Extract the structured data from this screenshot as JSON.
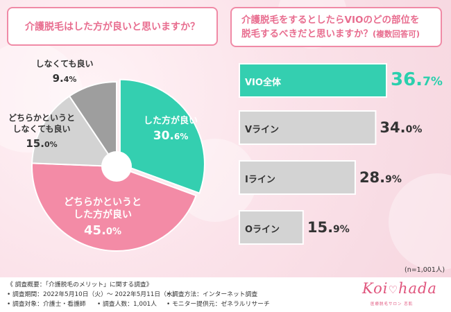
{
  "question1": "介護脱毛はした方が良いと思いますか？",
  "question2_line1": "介護脱毛をするとしたらVIOのどの部位を",
  "question2_line2": "脱毛するべきだと思いますか？",
  "question2_note": "(複数回答可)",
  "chart_data": [
    {
      "type": "pie",
      "title": "介護脱毛はした方が良いと思いますか？",
      "slices": [
        {
          "label_lines": [
            "した方が良い"
          ],
          "value_main": "30.",
          "value_dec": "6%",
          "value": 30.6,
          "color": "#34cfb0",
          "text_color": "#ffffff"
        },
        {
          "label_lines": [
            "どちらかというと",
            "した方が良い"
          ],
          "value_main": "45.",
          "value_dec": "0%",
          "value": 45.0,
          "color": "#f38ba6",
          "text_color": "#ffffff"
        },
        {
          "label_lines": [
            "どちらかというと",
            "しなくても良い"
          ],
          "value_main": "15.",
          "value_dec": "0%",
          "value": 15.0,
          "color": "#d3d3d3",
          "text_color": "#333333"
        },
        {
          "label_lines": [
            "しなくても良い"
          ],
          "value_main": "9.",
          "value_dec": "4%",
          "value": 9.4,
          "color": "#9e9e9e",
          "text_color": "#333333"
        }
      ]
    },
    {
      "type": "bar",
      "orientation": "horizontal",
      "title": "介護脱毛をするとしたらVIOのどの部位を脱毛するべきだと思いますか？(複数回答可)",
      "categories": [
        "VIO全体",
        "Vライン",
        "Iライン",
        "Oライン"
      ],
      "values": [
        36.7,
        34.0,
        28.9,
        15.9
      ],
      "value_main": [
        "36.",
        "34.",
        "28.",
        "15."
      ],
      "value_dec": [
        "7%",
        "0%",
        "9%",
        "9%"
      ],
      "colors": [
        "#34cfb0",
        "#d3d3d3",
        "#d3d3d3",
        "#d3d3d3"
      ],
      "xlim": [
        0,
        36.7
      ]
    }
  ],
  "sample_size": "(n=1,001人)",
  "footer": {
    "overview": "《 調査概要：「介護脱毛のメリット」に関する調査》",
    "period": "• 調査期間：2022年5月10日（火）～ 2022年5月11日（水）",
    "method": "• 調査方法：インターネット調査",
    "target": "• 調査対象：介護士・看護師",
    "count": "• 調査人数：1,001人",
    "provider": "• モニター提供元：ゼネラルリサーチ"
  },
  "logo": {
    "left": "Koi",
    "heart": "♡",
    "right": "hada",
    "sub": "医療脱毛サロン 恋肌"
  }
}
